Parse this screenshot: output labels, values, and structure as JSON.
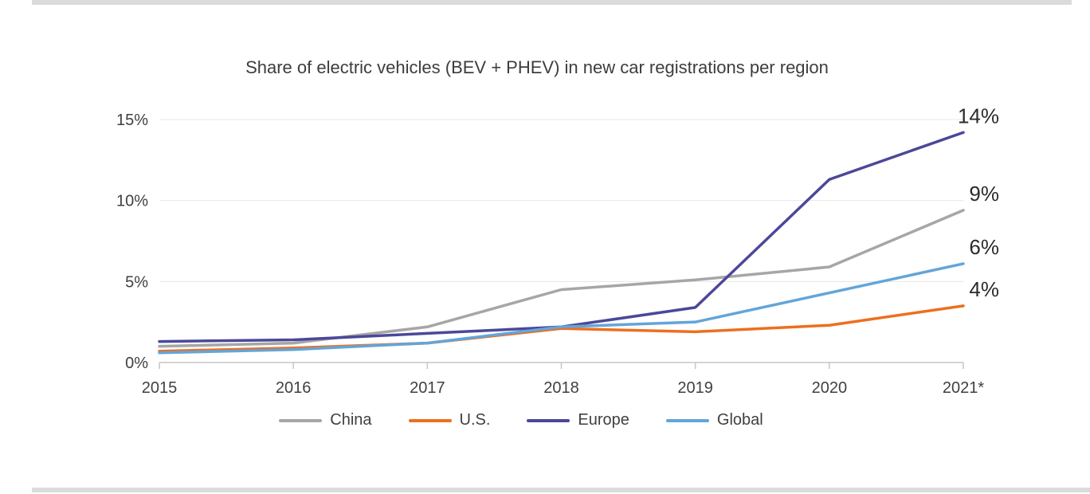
{
  "page": {
    "background": "#ffffff",
    "top_strip_color": "#dbdbdb",
    "bottom_strip_color": "#dbdbdb"
  },
  "chart_data": {
    "type": "line",
    "title": "Share of electric vehicles (BEV + PHEV) in new car registrations per region",
    "categories": [
      "2015",
      "2016",
      "2017",
      "2018",
      "2019",
      "2020",
      "2021*"
    ],
    "xlabel": "",
    "ylabel": "",
    "ylim": [
      0,
      15
    ],
    "y_ticks": [
      {
        "value": 0,
        "label": "0%"
      },
      {
        "value": 5,
        "label": "5%"
      },
      {
        "value": 10,
        "label": "10%"
      },
      {
        "value": 15,
        "label": "15%"
      }
    ],
    "grid": "horizontal-only",
    "legend_position": "bottom",
    "series": [
      {
        "name": "China",
        "color": "#a6a6a6",
        "values": [
          1.0,
          1.2,
          2.2,
          4.5,
          5.1,
          5.9,
          9.4
        ],
        "end_label": "9%"
      },
      {
        "name": "U.S.",
        "color": "#ed6f1f",
        "values": [
          0.7,
          0.9,
          1.2,
          2.1,
          1.9,
          2.3,
          3.5
        ],
        "end_label": "4%"
      },
      {
        "name": "Europe",
        "color": "#4b4899",
        "values": [
          1.3,
          1.4,
          1.8,
          2.2,
          3.4,
          11.3,
          14.2
        ],
        "end_label": "14%"
      },
      {
        "name": "Global",
        "color": "#63a5d8",
        "values": [
          0.6,
          0.8,
          1.2,
          2.2,
          2.5,
          4.3,
          6.1
        ],
        "end_label": "6%"
      }
    ],
    "annotation_colors": {
      "axis_text": "#404040",
      "end_label_text": "#2b2b2b",
      "gridline": "#e7e7e7",
      "axis_line": "#c6c6c6"
    }
  }
}
